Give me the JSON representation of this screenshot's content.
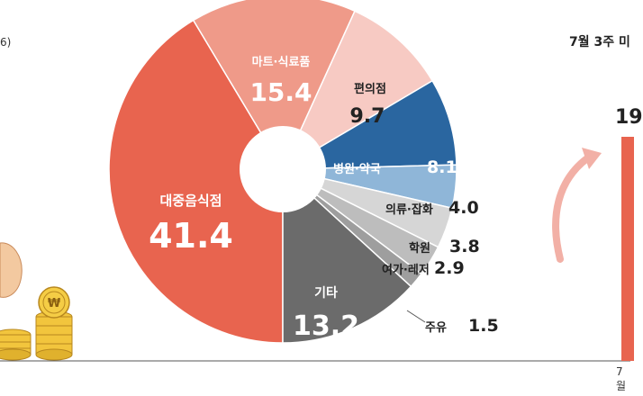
{
  "left_clip_text": "6)",
  "right_clip_title": "7월 3주 미",
  "right_clip_value": "19",
  "right_clip_bottom": "7월",
  "chart_data": {
    "type": "pie",
    "hole": true,
    "start_angle_deg": 180,
    "slices": [
      {
        "label": "대중음식점",
        "value": 41.4,
        "color": "#e8644f"
      },
      {
        "label": "마트·식료품",
        "value": 15.4,
        "color": "#ef9a89"
      },
      {
        "label": "편의점",
        "value": 9.7,
        "color": "#f7cac3"
      },
      {
        "label": "병원·약국",
        "value": 8.1,
        "color": "#2a66a0"
      },
      {
        "label": "의류·잡화",
        "value": 4.0,
        "color": "#8fb6d8"
      },
      {
        "label": "학원",
        "value": 3.8,
        "color": "#d6d6d6"
      },
      {
        "label": "여가·레저",
        "value": 2.9,
        "color": "#bdbdbd"
      },
      {
        "label": "주유",
        "value": 1.5,
        "color": "#9e9e9e"
      },
      {
        "label": "기타",
        "value": 13.2,
        "color": "#6b6b6b"
      }
    ]
  }
}
